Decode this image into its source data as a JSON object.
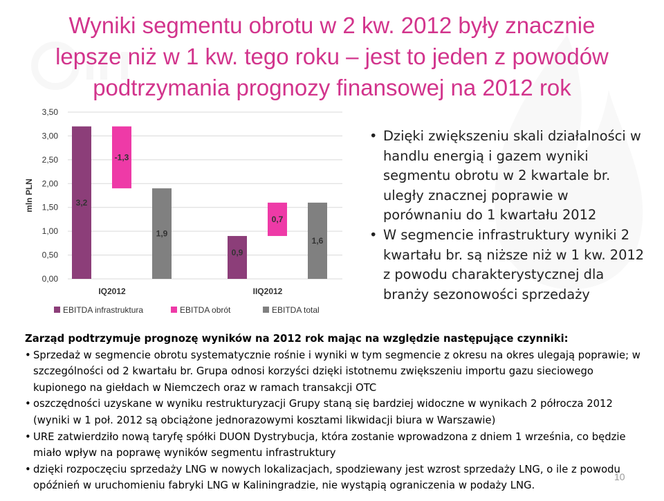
{
  "slide": {
    "title_lines": [
      "Wyniki segmentu obrotu w 2 kw. 2012 były znacznie",
      "lepsze niż w 1 kw. tego roku – jest to jeden z powodów",
      "podtrzymania prognozy finansowej na 2012 rok"
    ],
    "page_number": "10"
  },
  "colors": {
    "title": "#d2348c",
    "infrastruktura": "#8c3e79",
    "obrot": "#ee3aa7",
    "total": "#808080"
  },
  "chart_data": {
    "type": "bar",
    "subtype": "waterfall",
    "ylabel": "mln PLN",
    "ylim": [
      0,
      3.5
    ],
    "ytick_labels": [
      "0,00",
      "0,50",
      "1,00",
      "1,50",
      "2,00",
      "2,50",
      "3,00",
      "3,50"
    ],
    "yticks": [
      0,
      0.5,
      1,
      1.5,
      2,
      2.5,
      3,
      3.5
    ],
    "groups": [
      "IQ2012",
      "IIQ2012"
    ],
    "legend_position": "bottom",
    "series": [
      {
        "name": "EBITDA infrastruktura",
        "color_key": "infrastruktura"
      },
      {
        "name": "EBITDA obrót",
        "color_key": "obrot"
      },
      {
        "name": "EBITDA total",
        "color_key": "total"
      }
    ],
    "bars": [
      {
        "group": "IQ2012",
        "series": "EBITDA infrastruktura",
        "base": 0,
        "top": 3.2,
        "label": "3,2"
      },
      {
        "group": "IQ2012",
        "series": "EBITDA obrót",
        "base": 1.9,
        "top": 3.2,
        "label": "-1,3"
      },
      {
        "group": "IQ2012",
        "series": "EBITDA total",
        "base": 0,
        "top": 1.9,
        "label": "1,9"
      },
      {
        "group": "IIQ2012",
        "series": "EBITDA infrastruktura",
        "base": 0,
        "top": 0.9,
        "label": "0,9"
      },
      {
        "group": "IIQ2012",
        "series": "EBITDA obrót",
        "base": 0.9,
        "top": 1.6,
        "label": "0,7"
      },
      {
        "group": "IIQ2012",
        "series": "EBITDA total",
        "base": 0,
        "top": 1.6,
        "label": "1,6"
      }
    ]
  },
  "bullets": [
    "Dzięki zwiększeniu skali działalności w handlu energią i gazem wyniki segmentu obrotu w 2 kwartale br. uległy znacznej poprawie w porównaniu do 1 kwartału 2012",
    "W segmencie infrastruktury wyniki 2 kwartału br. są niższe niż w 1 kw. 2012 z powodu charakterystycznej dla branży sezonowości sprzedaży"
  ],
  "bottom": {
    "heading": "Zarząd podtrzymuje prognozę wyników na 2012 rok mając na względzie następujące czynniki:",
    "items": [
      "Sprzedaż w segmencie obrotu systematycznie rośnie i wyniki w tym segmencie z okresu na okres ulegają poprawie; w szczególności od 2 kwartału br. Grupa odnosi korzyści dzięki istotnemu zwiększeniu importu gazu sieciowego kupionego na giełdach w Niemczech oraz w ramach transakcji OTC",
      "oszczędności uzyskane w wyniku restrukturyzacji Grupy staną się bardziej widoczne w wynikach 2 półrocza 2012 (wyniki w 1 poł. 2012 są obciążone jednorazowymi kosztami likwidacji biura w Warszawie)",
      "URE zatwierdziło nową taryfę spółki DUON Dystrybucja, która zostanie wprowadzona z dniem 1 września, co będzie miało wpływ na poprawę wyników segmentu infrastruktury",
      "dzięki rozpoczęciu sprzedaży LNG w nowych lokalizacjach, spodziewany jest wzrost sprzedaży LNG, o ile z powodu opóźnień w uruchomieniu fabryki LNG w Kaliningradzie, nie wystąpią ograniczenia w podaży LNG."
    ]
  }
}
